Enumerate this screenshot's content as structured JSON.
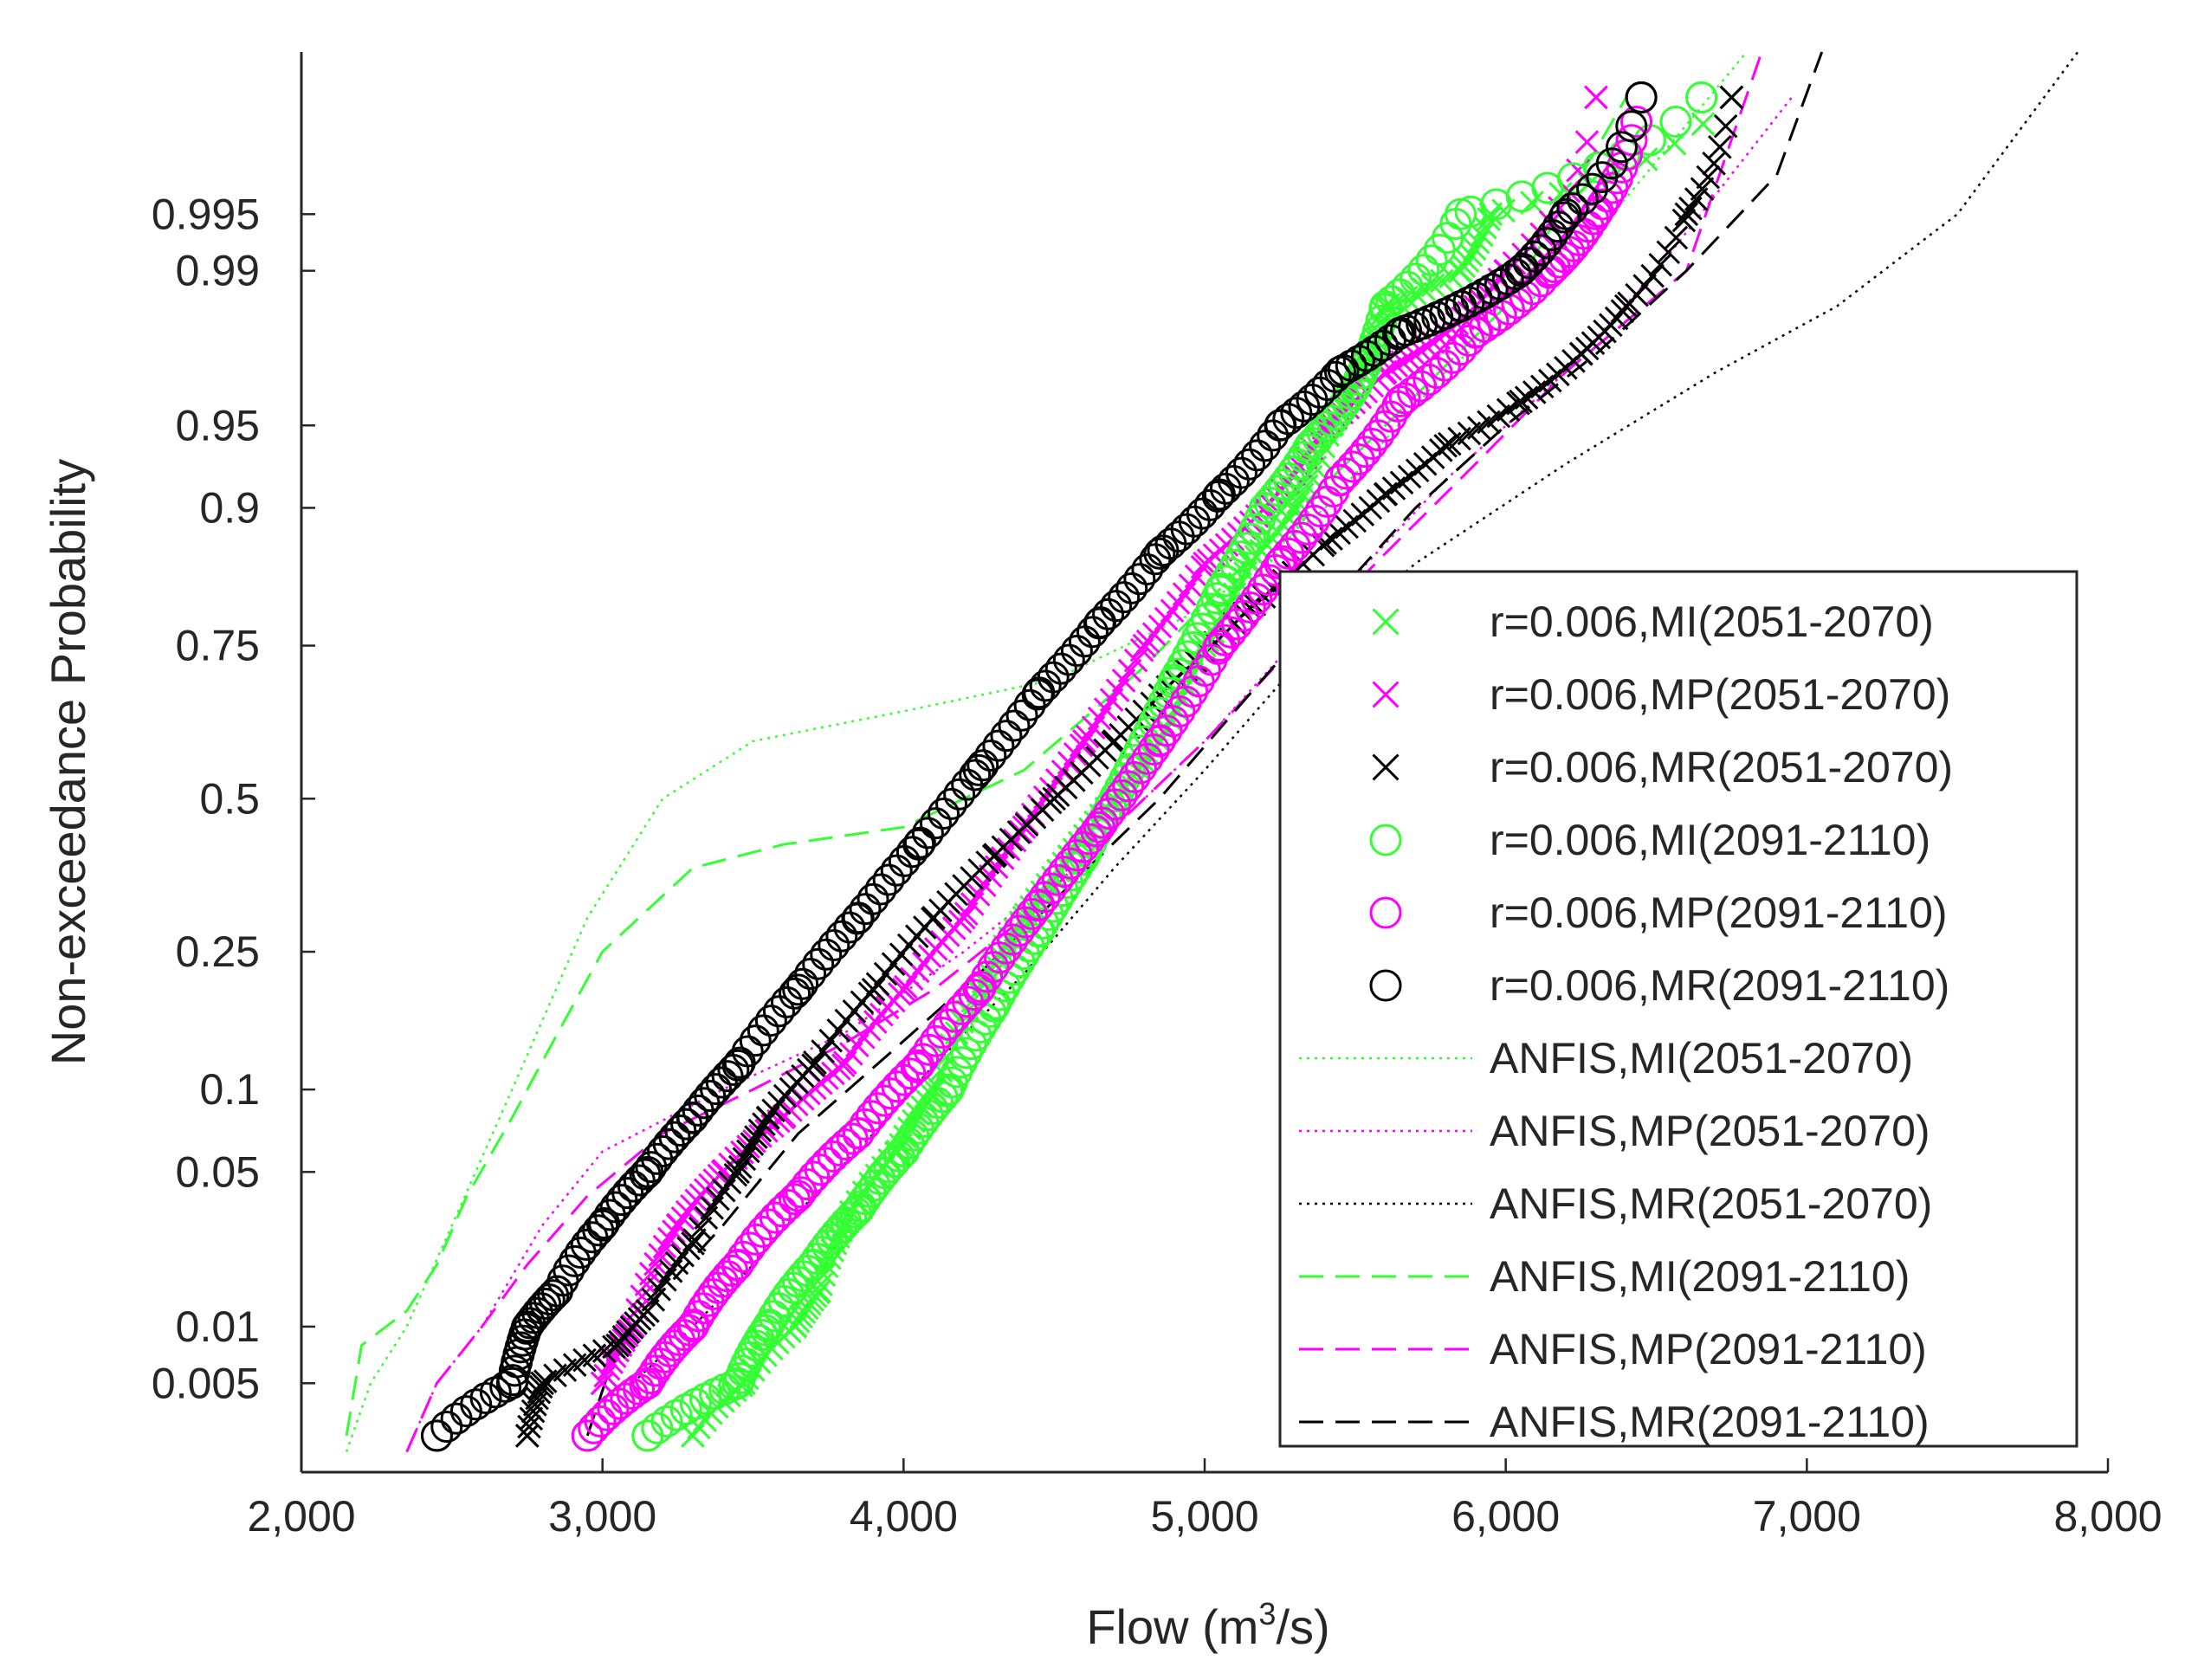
{
  "chart_data": {
    "type": "scatter",
    "title": "",
    "xlabel_main": "Flow (m",
    "xlabel_sup": "3",
    "xlabel_tail": "/s)",
    "ylabel": "Non-exceedance Probability",
    "x_scale": "linear",
    "y_scale": "normal-probability",
    "xlim": [
      2000,
      8000
    ],
    "ylim": [
      0.0015,
      0.9995
    ],
    "x_ticks": [
      2000,
      3000,
      4000,
      5000,
      6000,
      7000,
      8000
    ],
    "x_tick_labels": [
      "2,000",
      "3,000",
      "4,000",
      "5,000",
      "6,000",
      "7,000",
      "8,000"
    ],
    "y_ticks": [
      0.005,
      0.01,
      0.05,
      0.1,
      0.25,
      0.5,
      0.75,
      0.9,
      0.95,
      0.99,
      0.995
    ],
    "y_tick_labels": [
      "0.005",
      "0.01",
      "0.05",
      "0.1",
      "0.25",
      "0.5",
      "0.75",
      "0.9",
      "0.95",
      "0.99",
      "0.995"
    ],
    "grid": false,
    "legend_position": "lower-right",
    "series": [
      {
        "name": "r=0.006,MI(2051-2070)",
        "style": "marker",
        "marker": "x",
        "color": "#33ff33",
        "x": [
          3300,
          3470,
          3640,
          3720,
          3800,
          3980,
          4100,
          4250,
          4400,
          4550,
          4700,
          4850,
          5000,
          5150,
          5300,
          5420,
          5520,
          5600,
          5850,
          5950,
          6750
        ],
        "y": [
          0.0025,
          0.005,
          0.01,
          0.015,
          0.03,
          0.06,
          0.1,
          0.2,
          0.3,
          0.4,
          0.5,
          0.6,
          0.75,
          0.85,
          0.9,
          0.95,
          0.97,
          0.985,
          0.99,
          0.995,
          0.999
        ]
      },
      {
        "name": "r=0.006,MP(2051-2070)",
        "style": "marker",
        "marker": "x",
        "color": "#ff00ff",
        "x": [
          3000,
          3100,
          3250,
          3400,
          3600,
          3800,
          4000,
          4200,
          4400,
          4600,
          4800,
          5000,
          5200,
          5400,
          5600,
          5800,
          6000,
          6300
        ],
        "y": [
          0.005,
          0.01,
          0.03,
          0.05,
          0.08,
          0.12,
          0.2,
          0.3,
          0.45,
          0.6,
          0.75,
          0.85,
          0.9,
          0.95,
          0.97,
          0.98,
          0.99,
          0.999
        ]
      },
      {
        "name": "r=0.006,MR(2051-2070)",
        "style": "marker",
        "marker": "x",
        "color": "#000000",
        "x": [
          2750,
          2800,
          3050,
          3150,
          3300,
          3450,
          3550,
          3700,
          3900,
          4100,
          4300,
          4500,
          4700,
          4900,
          5150,
          5400,
          5600,
          5800,
          6050,
          6250,
          6400,
          6600,
          6750
        ],
        "y": [
          0.0025,
          0.005,
          0.008,
          0.012,
          0.025,
          0.05,
          0.08,
          0.12,
          0.2,
          0.3,
          0.4,
          0.5,
          0.6,
          0.7,
          0.8,
          0.87,
          0.91,
          0.94,
          0.96,
          0.975,
          0.985,
          0.995,
          0.999
        ]
      },
      {
        "name": "r=0.006,MI(2091-2110)",
        "style": "marker",
        "marker": "o",
        "color": "#33ff33",
        "x": [
          3150,
          3450,
          3550,
          3700,
          3850,
          4000,
          4150,
          4300,
          4450,
          4600,
          4750,
          4900,
          5050,
          5200,
          5350,
          5500,
          5600,
          5850,
          6650
        ],
        "y": [
          0.0025,
          0.005,
          0.01,
          0.02,
          0.035,
          0.06,
          0.1,
          0.18,
          0.28,
          0.4,
          0.55,
          0.7,
          0.82,
          0.9,
          0.94,
          0.965,
          0.985,
          0.995,
          0.999
        ]
      },
      {
        "name": "r=0.006,MP(2091-2110)",
        "style": "marker",
        "marker": "o",
        "color": "#ff00ff",
        "x": [
          2950,
          3150,
          3300,
          3450,
          3650,
          3850,
          4050,
          4250,
          4450,
          4650,
          4850,
          5050,
          5250,
          5450,
          5650,
          5900,
          6150,
          6300,
          6450
        ],
        "y": [
          0.0025,
          0.005,
          0.01,
          0.02,
          0.04,
          0.07,
          0.12,
          0.2,
          0.32,
          0.45,
          0.6,
          0.75,
          0.85,
          0.92,
          0.96,
          0.98,
          0.99,
          0.995,
          0.999
        ]
      },
      {
        "name": "r=0.006,MR(2091-2110)",
        "style": "marker",
        "marker": "o",
        "color": "#000000",
        "x": [
          2450,
          2700,
          2750,
          2850,
          3000,
          3150,
          3300,
          3450,
          3650,
          3850,
          4050,
          4250,
          4450,
          4650,
          4850,
          5050,
          5250,
          5450,
          5650,
          5850,
          6050,
          6200,
          6450
        ],
        "y": [
          0.0025,
          0.005,
          0.01,
          0.015,
          0.03,
          0.05,
          0.08,
          0.12,
          0.2,
          0.3,
          0.42,
          0.55,
          0.68,
          0.78,
          0.86,
          0.91,
          0.95,
          0.97,
          0.98,
          0.985,
          0.99,
          0.995,
          0.999
        ]
      },
      {
        "name": "ANFIS,MI(2051-2070)",
        "style": "dotted",
        "color": "#33ff33",
        "x": [
          2150,
          2230,
          2350,
          2500,
          2700,
          2950,
          3200,
          3500,
          4000,
          4500,
          5000,
          5400,
          5800,
          6200,
          6800
        ],
        "y": [
          0.002,
          0.005,
          0.01,
          0.03,
          0.1,
          0.3,
          0.5,
          0.6,
          0.65,
          0.7,
          0.8,
          0.9,
          0.97,
          0.99,
          0.9995
        ]
      },
      {
        "name": "ANFIS,MP(2051-2070)",
        "style": "dotted",
        "color": "#ff00ff",
        "x": [
          2350,
          2450,
          2600,
          2800,
          3000,
          3400,
          3800,
          4200,
          4600,
          5000,
          5400,
          5800,
          6200,
          6500,
          6950
        ],
        "y": [
          0.002,
          0.005,
          0.01,
          0.03,
          0.06,
          0.1,
          0.15,
          0.25,
          0.4,
          0.6,
          0.8,
          0.92,
          0.97,
          0.99,
          0.999
        ]
      },
      {
        "name": "ANFIS,MR(2051-2070)",
        "style": "dotted",
        "color": "#000000",
        "x": [
          3100,
          3300,
          3500,
          3700,
          3900,
          4100,
          4400,
          4700,
          5000,
          5300,
          5700,
          6200,
          6700,
          7100,
          7500,
          7900
        ],
        "y": [
          0.005,
          0.01,
          0.02,
          0.04,
          0.07,
          0.12,
          0.22,
          0.38,
          0.55,
          0.72,
          0.85,
          0.93,
          0.97,
          0.985,
          0.995,
          0.9995
        ]
      },
      {
        "name": "ANFIS,MI(2091-2110)",
        "style": "dashed",
        "color": "#33ff33",
        "x": [
          2150,
          2200,
          2350,
          2450,
          2550,
          2700,
          2850,
          3000,
          3300,
          3600,
          4000,
          4400,
          4800,
          5200,
          5600,
          6000,
          6400
        ],
        "y": [
          0.0025,
          0.008,
          0.012,
          0.02,
          0.04,
          0.08,
          0.15,
          0.25,
          0.38,
          0.42,
          0.45,
          0.55,
          0.72,
          0.87,
          0.95,
          0.985,
          0.999
        ]
      },
      {
        "name": "ANFIS,MP(2091-2110)",
        "style": "dashed",
        "color": "#ff00ff",
        "x": [
          2350,
          2450,
          2600,
          2750,
          2950,
          3200,
          3500,
          3800,
          4100,
          4400,
          4700,
          5000,
          5300,
          5600,
          5900,
          6200,
          6600,
          6850
        ],
        "y": [
          0.002,
          0.005,
          0.01,
          0.02,
          0.04,
          0.07,
          0.1,
          0.14,
          0.2,
          0.3,
          0.45,
          0.6,
          0.75,
          0.86,
          0.93,
          0.97,
          0.99,
          0.9995
        ]
      },
      {
        "name": "ANFIS,MR(2091-2110)",
        "style": "dashed",
        "color": "#000000",
        "x": [
          2950,
          3050,
          3200,
          3400,
          3650,
          3950,
          4250,
          4550,
          4850,
          5100,
          5400,
          5700,
          6000,
          6300,
          6600,
          6900,
          7050
        ],
        "y": [
          0.0025,
          0.008,
          0.015,
          0.03,
          0.07,
          0.13,
          0.22,
          0.35,
          0.5,
          0.65,
          0.8,
          0.9,
          0.95,
          0.975,
          0.99,
          0.997,
          0.9995
        ]
      }
    ]
  }
}
